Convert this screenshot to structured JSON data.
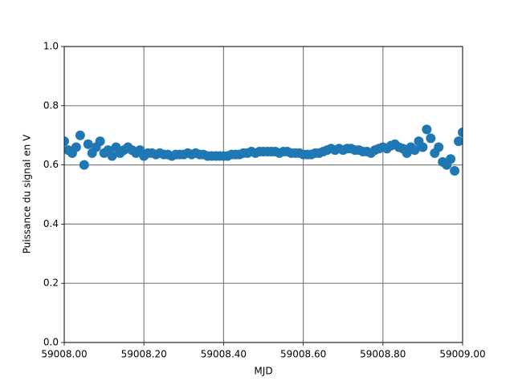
{
  "chart_data": {
    "type": "scatter",
    "xlabel": "MJD",
    "ylabel": "Puissance du signal en V",
    "xlim": [
      59008,
      59009
    ],
    "xticks": [
      {
        "value": 59008,
        "label": "59008.00"
      },
      {
        "value": 59008.2,
        "label": "59008.20"
      },
      {
        "value": 59008.4,
        "label": "59008.40"
      },
      {
        "value": 59008.6,
        "label": "59008.60"
      },
      {
        "value": 59008.8,
        "label": "59008.80"
      },
      {
        "value": 59009,
        "label": "59009.00"
      }
    ],
    "ylim": [
      0,
      1
    ],
    "yticks": [
      {
        "value": 0,
        "label": "0.0"
      },
      0.2,
      0.4,
      0.6,
      0.8,
      {
        "value": 1,
        "label": "1.0"
      }
    ],
    "grid": true,
    "color": "#1f77b4",
    "x": [
      59008.0,
      59008.01,
      59008.02,
      59008.03,
      59008.04,
      59008.05,
      59008.06,
      59008.07,
      59008.08,
      59008.09,
      59008.1,
      59008.11,
      59008.12,
      59008.13,
      59008.14,
      59008.15,
      59008.16,
      59008.17,
      59008.18,
      59008.19,
      59008.2,
      59008.21,
      59008.22,
      59008.23,
      59008.24,
      59008.25,
      59008.26,
      59008.27,
      59008.28,
      59008.29,
      59008.3,
      59008.31,
      59008.32,
      59008.33,
      59008.34,
      59008.35,
      59008.36,
      59008.37,
      59008.38,
      59008.39,
      59008.4,
      59008.41,
      59008.42,
      59008.43,
      59008.44,
      59008.45,
      59008.46,
      59008.47,
      59008.48,
      59008.49,
      59008.5,
      59008.51,
      59008.52,
      59008.53,
      59008.54,
      59008.55,
      59008.56,
      59008.57,
      59008.58,
      59008.59,
      59008.6,
      59008.61,
      59008.62,
      59008.63,
      59008.64,
      59008.65,
      59008.66,
      59008.67,
      59008.68,
      59008.69,
      59008.7,
      59008.71,
      59008.72,
      59008.73,
      59008.74,
      59008.75,
      59008.76,
      59008.77,
      59008.78,
      59008.79,
      59008.8,
      59008.81,
      59008.82,
      59008.83,
      59008.84,
      59008.85,
      59008.86,
      59008.87,
      59008.88,
      59008.89,
      59008.9,
      59008.91,
      59008.92,
      59008.93,
      59008.94,
      59008.95,
      59008.96,
      59008.97,
      59008.98,
      59008.99,
      59009.0
    ],
    "values": [
      0.68,
      0.65,
      0.64,
      0.66,
      0.7,
      0.6,
      0.67,
      0.64,
      0.66,
      0.68,
      0.64,
      0.65,
      0.63,
      0.66,
      0.64,
      0.65,
      0.66,
      0.65,
      0.64,
      0.65,
      0.63,
      0.64,
      0.64,
      0.635,
      0.64,
      0.635,
      0.635,
      0.63,
      0.635,
      0.635,
      0.635,
      0.64,
      0.635,
      0.64,
      0.635,
      0.635,
      0.63,
      0.63,
      0.63,
      0.63,
      0.63,
      0.63,
      0.635,
      0.635,
      0.635,
      0.64,
      0.64,
      0.645,
      0.64,
      0.645,
      0.645,
      0.645,
      0.645,
      0.645,
      0.64,
      0.645,
      0.645,
      0.64,
      0.64,
      0.64,
      0.635,
      0.635,
      0.635,
      0.64,
      0.64,
      0.645,
      0.65,
      0.655,
      0.65,
      0.655,
      0.65,
      0.655,
      0.655,
      0.65,
      0.65,
      0.645,
      0.645,
      0.64,
      0.65,
      0.655,
      0.66,
      0.655,
      0.665,
      0.67,
      0.66,
      0.655,
      0.64,
      0.66,
      0.65,
      0.68,
      0.66,
      0.72,
      0.69,
      0.64,
      0.66,
      0.61,
      0.6,
      0.62,
      0.58,
      0.68,
      0.71
    ]
  }
}
